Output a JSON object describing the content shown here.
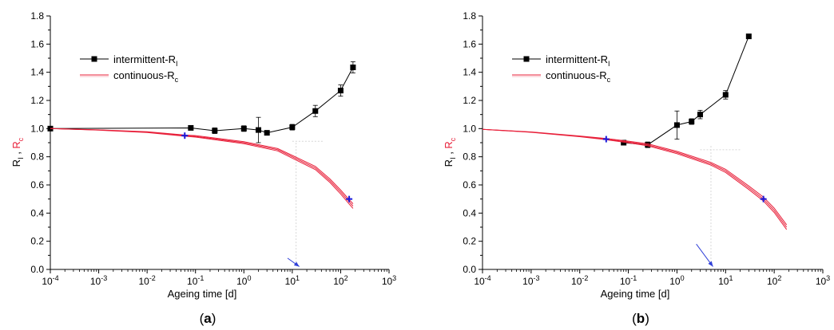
{
  "chart_data": [
    {
      "type": "line",
      "panel_label": "(a)",
      "panel_letter": "a",
      "xlabel": "Ageing time [d]",
      "ylabel_parts": {
        "main1": "R",
        "sub1": "I",
        "sep": " , ",
        "main2": "R",
        "sub2": "c"
      },
      "xscale": "log",
      "xlim": [
        0.0001,
        1000
      ],
      "ylim": [
        0.0,
        1.8
      ],
      "xticks": [
        {
          "value": 0.0001,
          "base": "10",
          "exp": "-4"
        },
        {
          "value": 0.001,
          "base": "10",
          "exp": "-3"
        },
        {
          "value": 0.01,
          "base": "10",
          "exp": "-2"
        },
        {
          "value": 0.1,
          "base": "10",
          "exp": "-1"
        },
        {
          "value": 1,
          "base": "10",
          "exp": "0"
        },
        {
          "value": 10,
          "base": "10",
          "exp": "1"
        },
        {
          "value": 100,
          "base": "10",
          "exp": "2"
        },
        {
          "value": 1000,
          "base": "10",
          "exp": "3"
        }
      ],
      "yticks": [
        {
          "value": 0.0,
          "label": "0.0"
        },
        {
          "value": 0.2,
          "label": "0.2"
        },
        {
          "value": 0.4,
          "label": "0.4"
        },
        {
          "value": 0.6,
          "label": "0.6"
        },
        {
          "value": 0.8,
          "label": "0.8"
        },
        {
          "value": 1.0,
          "label": "1.0"
        },
        {
          "value": 1.2,
          "label": "1.2"
        },
        {
          "value": 1.4,
          "label": "1.4"
        },
        {
          "value": 1.6,
          "label": "1.6"
        },
        {
          "value": 1.8,
          "label": "1.8"
        }
      ],
      "legend_placement": "upper-left",
      "series": [
        {
          "name_main": "intermittent-R",
          "name_sub": "I",
          "kind": "markers-line",
          "color": "#000000",
          "x": [
            0.0001,
            0.08,
            0.25,
            1,
            2,
            3,
            10,
            30,
            100,
            180
          ],
          "y": [
            1.0,
            1.005,
            0.985,
            1.0,
            0.99,
            0.97,
            1.01,
            1.125,
            1.27,
            1.435
          ],
          "err": [
            0,
            0,
            0.02,
            0.02,
            0.09,
            0,
            0.02,
            0.04,
            0.04,
            0.04
          ]
        },
        {
          "name_main": "continuous-R",
          "name_sub": "c",
          "kind": "band",
          "color": "#e8203a",
          "x": [
            0.0001,
            0.001,
            0.01,
            0.06,
            0.1,
            1,
            5,
            10,
            30,
            60,
            100,
            150,
            180
          ],
          "y": [
            1.0,
            0.99,
            0.975,
            0.95,
            0.945,
            0.9,
            0.85,
            0.8,
            0.72,
            0.63,
            0.55,
            0.48,
            0.45
          ]
        }
      ],
      "markers": [
        {
          "x": 0.06,
          "y": 0.95,
          "color": "#1a1adc"
        },
        {
          "x": 150,
          "y": 0.5,
          "color": "#1a1adc"
        }
      ],
      "arrow": {
        "from": [
          8,
          0.08
        ],
        "to": [
          14,
          0.02
        ],
        "color": "#3040d8"
      },
      "guides": [
        {
          "x1": 10,
          "y1": 0.91,
          "x2": 45,
          "y2": 0.91
        },
        {
          "x1": 12,
          "y1": 0.05,
          "x2": 12,
          "y2": 0.91
        }
      ]
    },
    {
      "type": "line",
      "panel_label": "(b)",
      "panel_letter": "b",
      "xlabel": "Ageing time [d]",
      "ylabel_parts": {
        "main1": "R",
        "sub1": "I",
        "sep": " , ",
        "main2": "R",
        "sub2": "c"
      },
      "xscale": "log",
      "xlim": [
        0.0001,
        1000
      ],
      "ylim": [
        0.0,
        1.8
      ],
      "xticks": [
        {
          "value": 0.0001,
          "base": "10",
          "exp": "-4"
        },
        {
          "value": 0.001,
          "base": "10",
          "exp": "-3"
        },
        {
          "value": 0.01,
          "base": "10",
          "exp": "-2"
        },
        {
          "value": 0.1,
          "base": "10",
          "exp": "-1"
        },
        {
          "value": 1,
          "base": "10",
          "exp": "0"
        },
        {
          "value": 10,
          "base": "10",
          "exp": "1"
        },
        {
          "value": 100,
          "base": "10",
          "exp": "2"
        },
        {
          "value": 1000,
          "base": "10",
          "exp": "3"
        }
      ],
      "yticks": [
        {
          "value": 0.0,
          "label": "0.0"
        },
        {
          "value": 0.2,
          "label": "0.2"
        },
        {
          "value": 0.4,
          "label": "0.4"
        },
        {
          "value": 0.6,
          "label": "0.6"
        },
        {
          "value": 0.8,
          "label": "0.8"
        },
        {
          "value": 1.0,
          "label": "1.0"
        },
        {
          "value": 1.2,
          "label": "1.2"
        },
        {
          "value": 1.4,
          "label": "1.4"
        },
        {
          "value": 1.6,
          "label": "1.6"
        },
        {
          "value": 1.8,
          "label": "1.8"
        }
      ],
      "legend_placement": "upper-left",
      "series": [
        {
          "name_main": "intermittent-R",
          "name_sub": "I",
          "kind": "markers-line",
          "color": "#000000",
          "x": [
            0.08,
            0.25,
            1,
            2,
            3,
            10,
            30
          ],
          "y": [
            0.9,
            0.885,
            1.025,
            1.05,
            1.1,
            1.24,
            1.655
          ],
          "err": [
            0,
            0.02,
            0.1,
            0.02,
            0.03,
            0.03,
            0
          ]
        },
        {
          "name_main": "continuous-R",
          "name_sub": "c",
          "kind": "band",
          "color": "#e8203a",
          "x": [
            0.0001,
            0.001,
            0.01,
            0.035,
            0.1,
            0.25,
            1,
            5,
            10,
            30,
            60,
            100,
            180
          ],
          "y": [
            0.995,
            0.975,
            0.945,
            0.925,
            0.905,
            0.885,
            0.83,
            0.75,
            0.7,
            0.58,
            0.5,
            0.42,
            0.3
          ]
        }
      ],
      "markers": [
        {
          "x": 0.035,
          "y": 0.925,
          "color": "#1a1adc"
        },
        {
          "x": 60,
          "y": 0.5,
          "color": "#1a1adc"
        }
      ],
      "arrow": {
        "from": [
          2.5,
          0.18
        ],
        "to": [
          5.5,
          0.02
        ],
        "color": "#3040d8"
      },
      "guides": [
        {
          "x1": 3,
          "y1": 0.85,
          "x2": 20,
          "y2": 0.85
        },
        {
          "x1": 5,
          "y1": 0.05,
          "x2": 5,
          "y2": 0.88
        }
      ]
    }
  ]
}
